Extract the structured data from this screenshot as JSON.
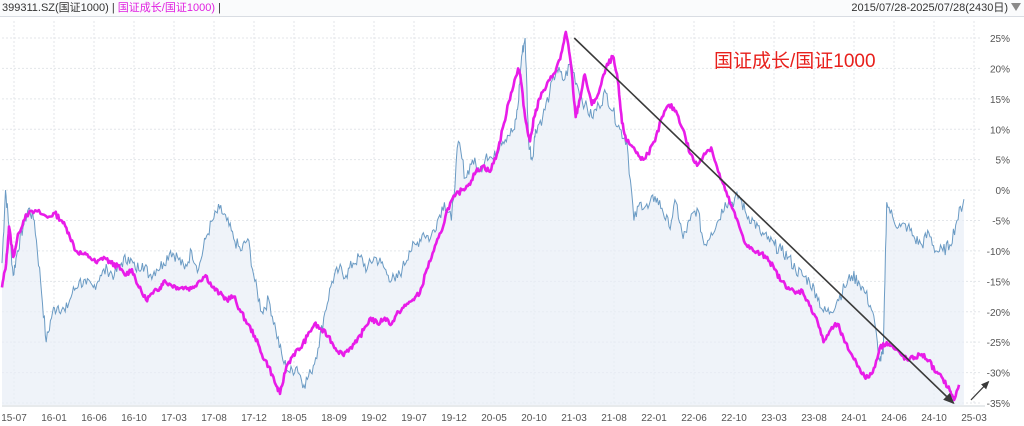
{
  "header": {
    "code": "399311.SZ(国证1000)",
    "separator1": "|",
    "ratio_label": "国证成长/国证1000)",
    "separator2": "|",
    "range": "2015/07/28-2025/07/28(2430日)"
  },
  "annotation": "国证成长/国证1000",
  "colors": {
    "ratio_line": "#e81ce8",
    "index_line": "#6b9bc4",
    "index_fill": "#e8eef6",
    "trend_arrow": "#3a3a3a",
    "grid": "#e3e6ea",
    "axis_text": "#555555"
  },
  "chart_data": {
    "type": "line",
    "x_ticks": [
      "15-07",
      "16-01",
      "16-06",
      "16-10",
      "17-03",
      "17-08",
      "17-12",
      "18-05",
      "18-09",
      "19-02",
      "19-07",
      "19-12",
      "20-05",
      "20-10",
      "21-03",
      "21-08",
      "22-01",
      "22-06",
      "22-10",
      "23-03",
      "23-08",
      "24-01",
      "24-06",
      "24-10",
      "25-03"
    ],
    "y_ticks": [
      "25%",
      "20%",
      "15%",
      "10%",
      "5%",
      "0%",
      "-5%",
      "-10%",
      "-15%",
      "-20%",
      "-25%",
      "-30%",
      "-35%"
    ],
    "ylim": [
      -35,
      27
    ],
    "grid": true,
    "series": [
      {
        "name": "国证成长/国证1000",
        "color": "#e81ce8",
        "points": [
          [
            0,
            -16
          ],
          [
            0.6,
            -12
          ],
          [
            1,
            -6
          ],
          [
            1.6,
            -11
          ],
          [
            2.4,
            -7
          ],
          [
            3.4,
            -4
          ],
          [
            5,
            -3.5
          ],
          [
            6.5,
            -4.5
          ],
          [
            7.5,
            -3.8
          ],
          [
            8.5,
            -5
          ],
          [
            9.5,
            -7
          ],
          [
            10.5,
            -10
          ],
          [
            11.5,
            -10.5
          ],
          [
            12.5,
            -11
          ],
          [
            13.5,
            -12
          ],
          [
            14.5,
            -11
          ],
          [
            15.5,
            -12
          ],
          [
            16.5,
            -12.5
          ],
          [
            17.5,
            -14
          ],
          [
            18.5,
            -13
          ],
          [
            19.5,
            -16
          ],
          [
            20.5,
            -18
          ],
          [
            21.5,
            -17
          ],
          [
            22.5,
            -16
          ],
          [
            23,
            -15
          ],
          [
            24,
            -15.5
          ],
          [
            25,
            -16
          ],
          [
            26,
            -16
          ],
          [
            27,
            -16.2
          ],
          [
            28,
            -15
          ],
          [
            29,
            -14
          ],
          [
            30,
            -16
          ],
          [
            31,
            -17
          ],
          [
            32,
            -18
          ],
          [
            33,
            -17.5
          ],
          [
            34,
            -20
          ],
          [
            35,
            -22
          ],
          [
            36,
            -24
          ],
          [
            37,
            -27
          ],
          [
            38,
            -29
          ],
          [
            39,
            -32
          ],
          [
            39.6,
            -33.5
          ],
          [
            40.5,
            -29
          ],
          [
            41.5,
            -27
          ],
          [
            42.5,
            -26
          ],
          [
            43.5,
            -24
          ],
          [
            44.5,
            -22
          ],
          [
            45.5,
            -23
          ],
          [
            46.5,
            -24
          ],
          [
            47.5,
            -26
          ],
          [
            48.5,
            -27
          ],
          [
            49.5,
            -26
          ],
          [
            50.5,
            -25
          ],
          [
            51.5,
            -23
          ],
          [
            52.5,
            -21
          ],
          [
            53.5,
            -22
          ],
          [
            54.5,
            -21
          ],
          [
            55.5,
            -22
          ],
          [
            56.5,
            -20
          ],
          [
            57.5,
            -19
          ],
          [
            58.5,
            -18
          ],
          [
            59.5,
            -17
          ],
          [
            60.5,
            -13
          ],
          [
            61.5,
            -10
          ],
          [
            62.5,
            -7
          ],
          [
            63.5,
            -3
          ],
          [
            64.5,
            -1
          ],
          [
            65.5,
            0
          ],
          [
            66.5,
            1
          ],
          [
            67.5,
            3
          ],
          [
            68.5,
            4
          ],
          [
            69.5,
            3
          ],
          [
            70.5,
            6
          ],
          [
            71.5,
            11
          ],
          [
            72.5,
            16
          ],
          [
            73.5,
            20
          ],
          [
            73.8,
            19
          ],
          [
            74.5,
            12
          ],
          [
            75.2,
            8
          ],
          [
            75.8,
            12
          ],
          [
            76.5,
            15
          ],
          [
            77.5,
            17
          ],
          [
            78.5,
            19
          ],
          [
            79.5,
            21.5
          ],
          [
            80.3,
            26
          ],
          [
            81,
            21
          ],
          [
            81.7,
            12
          ],
          [
            82.3,
            15
          ],
          [
            83,
            19
          ],
          [
            84,
            14
          ],
          [
            85,
            16
          ],
          [
            86,
            20
          ],
          [
            87,
            22
          ],
          [
            87.7,
            18
          ],
          [
            88.3,
            11
          ],
          [
            89,
            8
          ],
          [
            90,
            7
          ],
          [
            91,
            5
          ],
          [
            92,
            6
          ],
          [
            93,
            8
          ],
          [
            94,
            12
          ],
          [
            95,
            14
          ],
          [
            96,
            13
          ],
          [
            97,
            10
          ],
          [
            98,
            6
          ],
          [
            99,
            4
          ],
          [
            100,
            6
          ],
          [
            101,
            7
          ],
          [
            102,
            3
          ],
          [
            103,
            0
          ],
          [
            104,
            -3
          ],
          [
            105,
            -6
          ],
          [
            106,
            -9
          ],
          [
            107,
            -10
          ],
          [
            108,
            -10.5
          ],
          [
            109,
            -11
          ],
          [
            110,
            -13
          ],
          [
            111,
            -15
          ],
          [
            112,
            -16
          ],
          [
            113,
            -17
          ],
          [
            114,
            -16.5
          ],
          [
            115,
            -19
          ],
          [
            116,
            -21
          ],
          [
            117,
            -25
          ],
          [
            118,
            -23
          ],
          [
            119,
            -22
          ],
          [
            120,
            -25
          ],
          [
            121,
            -27
          ],
          [
            122,
            -29
          ],
          [
            123,
            -31
          ],
          [
            124,
            -30
          ],
          [
            125,
            -26
          ],
          [
            126,
            -25
          ],
          [
            127,
            -26
          ],
          [
            128,
            -27
          ],
          [
            129,
            -28
          ],
          [
            130,
            -27.5
          ],
          [
            131,
            -27
          ],
          [
            132,
            -28
          ],
          [
            133,
            -30
          ],
          [
            134,
            -31
          ],
          [
            135,
            -33
          ],
          [
            135.6,
            -34.5
          ],
          [
            136.3,
            -32
          ]
        ]
      },
      {
        "name": "399311.SZ(国证1000)",
        "color": "#6b9bc4",
        "points": [
          [
            0,
            -12
          ],
          [
            0.5,
            0
          ],
          [
            1,
            -6
          ],
          [
            1.6,
            -14
          ],
          [
            2.2,
            -10
          ],
          [
            3,
            -6
          ],
          [
            3.8,
            -3
          ],
          [
            4.6,
            -5
          ],
          [
            5.5,
            -15
          ],
          [
            6.3,
            -25
          ],
          [
            7.2,
            -20
          ],
          [
            8,
            -19
          ],
          [
            9,
            -20
          ],
          [
            10,
            -17
          ],
          [
            11,
            -15
          ],
          [
            12,
            -15.5
          ],
          [
            13,
            -16
          ],
          [
            14,
            -14
          ],
          [
            15,
            -13
          ],
          [
            16,
            -14
          ],
          [
            17,
            -12
          ],
          [
            18,
            -11
          ],
          [
            19,
            -13
          ],
          [
            20,
            -12
          ],
          [
            21,
            -14
          ],
          [
            22,
            -13
          ],
          [
            23,
            -12
          ],
          [
            24,
            -10
          ],
          [
            25,
            -11
          ],
          [
            26,
            -13
          ],
          [
            27,
            -10
          ],
          [
            28,
            -13
          ],
          [
            29,
            -8
          ],
          [
            30,
            -5
          ],
          [
            31,
            -3
          ],
          [
            32,
            -5
          ],
          [
            33,
            -8
          ],
          [
            34,
            -10
          ],
          [
            35,
            -8
          ],
          [
            36,
            -15
          ],
          [
            37,
            -20
          ],
          [
            38,
            -18
          ],
          [
            39,
            -23
          ],
          [
            40,
            -28
          ],
          [
            41,
            -30
          ],
          [
            42,
            -29
          ],
          [
            43,
            -32
          ],
          [
            44,
            -30
          ],
          [
            45,
            -26
          ],
          [
            46,
            -20
          ],
          [
            47,
            -15
          ],
          [
            48,
            -13
          ],
          [
            49,
            -14
          ],
          [
            50,
            -12
          ],
          [
            51,
            -11
          ],
          [
            52,
            -13
          ],
          [
            53,
            -11
          ],
          [
            54,
            -12
          ],
          [
            55,
            -14
          ],
          [
            56,
            -15
          ],
          [
            57,
            -13
          ],
          [
            58,
            -10
          ],
          [
            59,
            -9
          ],
          [
            60,
            -7
          ],
          [
            61,
            -8
          ],
          [
            62,
            -5
          ],
          [
            63,
            -2
          ],
          [
            64,
            -5
          ],
          [
            65,
            8
          ],
          [
            66,
            2
          ],
          [
            67,
            5
          ],
          [
            68,
            3
          ],
          [
            69,
            6
          ],
          [
            70,
            5
          ],
          [
            71,
            8
          ],
          [
            72,
            9
          ],
          [
            73,
            10
          ],
          [
            73.5,
            14
          ],
          [
            74,
            22
          ],
          [
            74.5,
            25
          ],
          [
            75,
            8
          ],
          [
            75.5,
            5
          ],
          [
            76,
            10
          ],
          [
            77,
            12
          ],
          [
            78,
            16
          ],
          [
            79,
            20
          ],
          [
            80,
            18
          ],
          [
            81,
            21
          ],
          [
            82,
            17
          ],
          [
            83,
            14
          ],
          [
            84,
            12
          ],
          [
            85,
            14
          ],
          [
            86,
            16
          ],
          [
            87,
            13
          ],
          [
            88,
            10
          ],
          [
            89,
            8
          ],
          [
            90,
            -5
          ],
          [
            91,
            -2
          ],
          [
            92,
            -3
          ],
          [
            93,
            -1
          ],
          [
            94,
            -3
          ],
          [
            95,
            -6
          ],
          [
            96,
            -2
          ],
          [
            97,
            -8
          ],
          [
            98,
            -5
          ],
          [
            99,
            -3
          ],
          [
            100,
            -9
          ],
          [
            101,
            -7
          ],
          [
            102,
            -5
          ],
          [
            103,
            -2
          ],
          [
            104,
            -2
          ],
          [
            105,
            -1
          ],
          [
            106,
            -4
          ],
          [
            107,
            -5
          ],
          [
            108,
            -7
          ],
          [
            109,
            -8
          ],
          [
            110,
            -9
          ],
          [
            111,
            -10
          ],
          [
            112,
            -11
          ],
          [
            113,
            -13
          ],
          [
            114,
            -14
          ],
          [
            115,
            -15
          ],
          [
            116,
            -17
          ],
          [
            117,
            -20
          ],
          [
            118,
            -20
          ],
          [
            119,
            -18
          ],
          [
            120,
            -16
          ],
          [
            121,
            -14
          ],
          [
            122,
            -15
          ],
          [
            123,
            -17
          ],
          [
            124,
            -20
          ],
          [
            125,
            -28
          ],
          [
            125.5,
            -27
          ],
          [
            126,
            -2
          ],
          [
            127,
            -5
          ],
          [
            128,
            -6
          ],
          [
            129,
            -6
          ],
          [
            130,
            -8
          ],
          [
            131,
            -9
          ],
          [
            132,
            -7
          ],
          [
            133,
            -10
          ],
          [
            134,
            -10
          ],
          [
            135,
            -9
          ],
          [
            136,
            -5
          ],
          [
            137,
            -1.5
          ]
        ]
      }
    ],
    "trend_arrows": [
      {
        "from": [
          81.5,
          25
        ],
        "to": [
          135.5,
          -35
        ]
      },
      {
        "from": [
          138,
          -34.5
        ],
        "to": [
          140.5,
          -31.5
        ]
      }
    ]
  }
}
